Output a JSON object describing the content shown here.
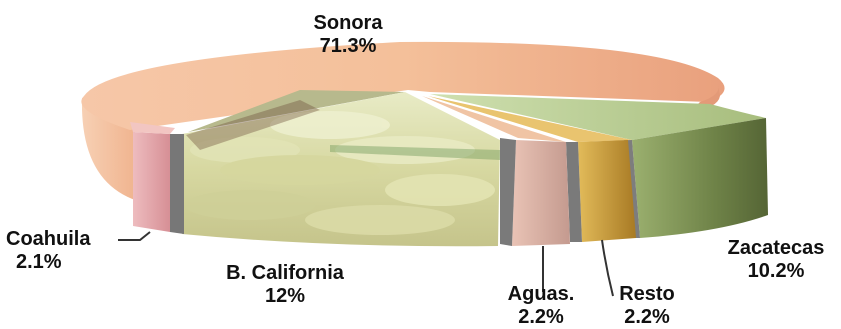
{
  "chart_data": {
    "type": "pie",
    "style": "3d-exploded",
    "title": "",
    "slices": [
      {
        "label": "Sonora",
        "value_label": "71.3%",
        "value": 71.3,
        "color": "#f2b98f"
      },
      {
        "label": "Zacatecas",
        "value_label": "10.2%",
        "value": 10.2,
        "color": "#8fa565"
      },
      {
        "label": "Resto",
        "value_label": "2.2%",
        "value": 2.2,
        "color": "#c89a3a"
      },
      {
        "label": "Aguas.",
        "value_label": "2.2%",
        "value": 2.2,
        "color": "#e0b0a0"
      },
      {
        "label": "B. California",
        "value_label": "12%",
        "value": 12,
        "color": "#d9d6a8"
      },
      {
        "label": "Coahuila",
        "value_label": "2.1%",
        "value": 2.1,
        "color": "#e6a6aa"
      }
    ],
    "legend": "none"
  }
}
